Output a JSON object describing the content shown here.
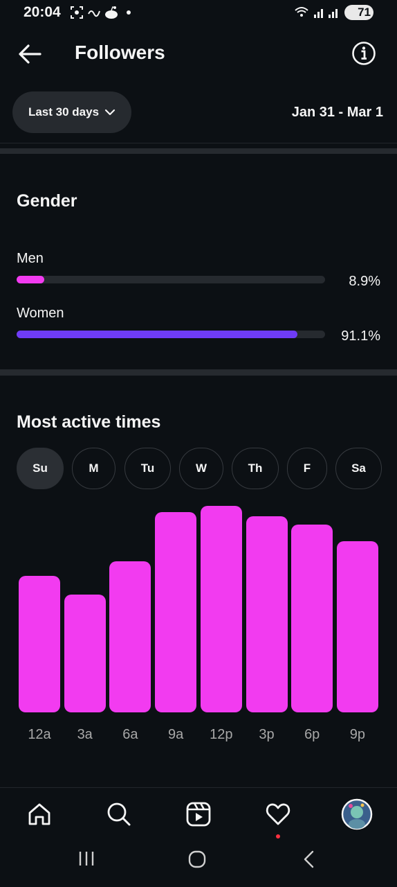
{
  "status_bar": {
    "time": "20:04",
    "battery": "71"
  },
  "header": {
    "title": "Followers"
  },
  "filter": {
    "range_label": "Last 30 days",
    "date_range": "Jan 31 - Mar 1"
  },
  "gender": {
    "title": "Gender",
    "items": [
      {
        "label": "Men",
        "value_text": "8.9%",
        "fraction": 0.089,
        "color": "#f23bf0"
      },
      {
        "label": "Women",
        "value_text": "91.1%",
        "fraction": 0.911,
        "color": "#6f3cf6"
      }
    ]
  },
  "active_times": {
    "title": "Most active times",
    "days": [
      {
        "label": "Su",
        "selected": true
      },
      {
        "label": "M",
        "selected": false
      },
      {
        "label": "Tu",
        "selected": false
      },
      {
        "label": "W",
        "selected": false
      },
      {
        "label": "Th",
        "selected": false
      },
      {
        "label": "F",
        "selected": false
      },
      {
        "label": "Sa",
        "selected": false
      }
    ]
  },
  "chart_data": {
    "type": "bar",
    "categories": [
      "12a",
      "3a",
      "6a",
      "9a",
      "12p",
      "3p",
      "6p",
      "9p"
    ],
    "values": [
      66,
      57,
      73,
      97,
      100,
      95,
      91,
      83
    ],
    "ylim": [
      0,
      100
    ],
    "grid": false,
    "color": "#f23bf0"
  },
  "bottom_nav": [
    "home-icon",
    "search-icon",
    "reels-icon",
    "heart-icon",
    "profile-avatar"
  ],
  "colors": {
    "background": "#0c1014",
    "men": "#f23bf0",
    "women": "#6f3cf6",
    "notification": "#ff3040"
  }
}
